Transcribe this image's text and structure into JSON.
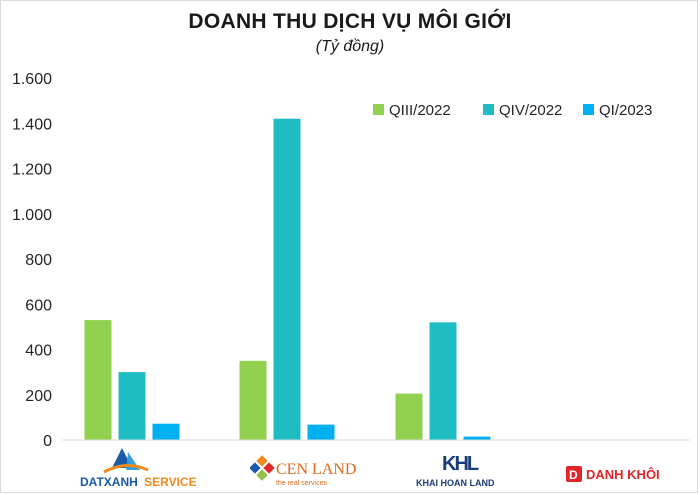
{
  "title": "DOANH THU DỊCH VỤ MÔI GIỚI",
  "subtitle": "(Tỷ đồng)",
  "chart_data": {
    "type": "bar",
    "categories": [
      "DATXANH SERVICES",
      "CEN LAND",
      "KHAI HOAN LAND",
      "DANH KHÔI"
    ],
    "series": [
      {
        "name": "QIII/2022",
        "color": "#92d050",
        "values": [
          530,
          350,
          205,
          0
        ]
      },
      {
        "name": "QIV/2022",
        "color": "#1fbdc3",
        "values": [
          300,
          1420,
          520,
          2
        ]
      },
      {
        "name": "QI/2023",
        "color": "#00b0f0",
        "values": [
          72,
          68,
          15,
          0
        ]
      }
    ],
    "ylim": [
      0,
      1600
    ],
    "yticks": [
      0,
      200,
      400,
      600,
      800,
      1000,
      1200,
      1400,
      1600
    ],
    "ytick_labels": [
      "0",
      "200",
      "400",
      "600",
      "800",
      "1.000",
      "1.200",
      "1.400",
      "1.600"
    ],
    "grid": false,
    "legend": "top-right"
  },
  "logos": {
    "datxanh": {
      "word1": "DATXANH",
      "word2": "SERVICES",
      "color1": "#1a5aa6",
      "color2": "#f08c1e"
    },
    "cenland": {
      "name": "CEN LAND",
      "tagline": "the real services",
      "color": "#e06a1b"
    },
    "khaihoan": {
      "mark": "KHL",
      "name": "KHAI HOAN LAND",
      "color": "#1a3c7a"
    },
    "danhkhoi": {
      "mark": "D",
      "name": "DANH KHÔI",
      "color": "#e0262b"
    }
  }
}
